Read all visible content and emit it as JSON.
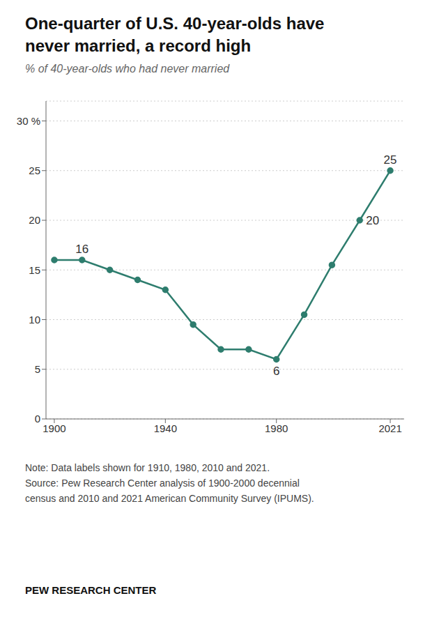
{
  "chart_data": {
    "type": "line",
    "title": "One-quarter of U.S. 40-year-olds have\nnever married, a record high",
    "subtitle": "% of 40-year-olds who had never married",
    "x": [
      1900,
      1910,
      1920,
      1930,
      1940,
      1950,
      1960,
      1970,
      1980,
      1990,
      2000,
      2010,
      2021
    ],
    "values": [
      16,
      16,
      15,
      14,
      13,
      9.5,
      7,
      7,
      6,
      10.5,
      15.5,
      20,
      25
    ],
    "value_labels": [
      null,
      "16",
      null,
      null,
      null,
      null,
      null,
      null,
      "6",
      null,
      null,
      "20",
      "25"
    ],
    "color": "#2e7d6e",
    "marker": "circle",
    "xlim": [
      1897,
      2026
    ],
    "xticks": [
      1900,
      1940,
      1980,
      2021
    ],
    "ylim": [
      0,
      32
    ],
    "yticks": [
      0,
      5,
      10,
      15,
      20,
      25,
      {
        "value": 30,
        "label": "30 %"
      }
    ],
    "grid": "y",
    "annotations": [
      "Note: Data labels shown for 1910, 1980, 2010 and 2021.\nSource: Pew Research Center analysis of 1900-2000 decennial\ncensus and 2010 and 2021 American Community Survey (IPUMS).",
      "PEW RESEARCH CENTER"
    ]
  }
}
